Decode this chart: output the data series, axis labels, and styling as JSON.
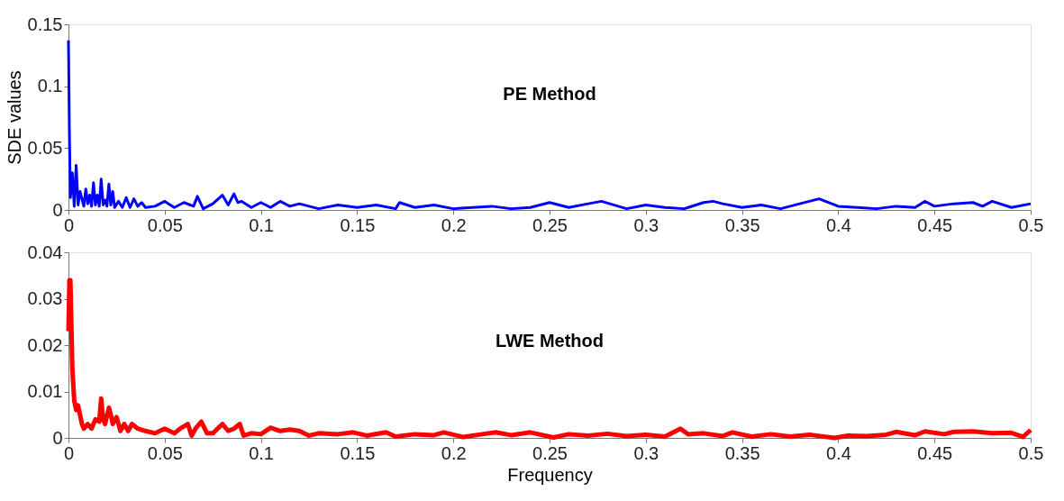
{
  "chart_data": [
    {
      "type": "line",
      "ylabel": "SDE values",
      "annotations": [
        "PE Method"
      ],
      "x": [
        0,
        0.0005,
        0.001,
        0.002,
        0.003,
        0.004,
        0.005,
        0.006,
        0.008,
        0.009,
        0.01,
        0.011,
        0.012,
        0.013,
        0.014,
        0.015,
        0.016,
        0.017,
        0.018,
        0.019,
        0.02,
        0.021,
        0.022,
        0.023,
        0.024,
        0.026,
        0.028,
        0.03,
        0.032,
        0.034,
        0.036,
        0.038,
        0.04,
        0.045,
        0.05,
        0.055,
        0.06,
        0.065,
        0.067,
        0.07,
        0.075,
        0.08,
        0.083,
        0.086,
        0.088,
        0.09,
        0.095,
        0.1,
        0.105,
        0.11,
        0.115,
        0.12,
        0.13,
        0.14,
        0.15,
        0.16,
        0.17,
        0.172,
        0.18,
        0.19,
        0.2,
        0.21,
        0.22,
        0.23,
        0.24,
        0.25,
        0.26,
        0.27,
        0.277,
        0.29,
        0.3,
        0.31,
        0.32,
        0.33,
        0.335,
        0.34,
        0.35,
        0.36,
        0.37,
        0.38,
        0.39,
        0.4,
        0.41,
        0.42,
        0.43,
        0.44,
        0.445,
        0.45,
        0.46,
        0.47,
        0.475,
        0.48,
        0.49,
        0.5
      ],
      "series": [
        {
          "color": "#0000ff",
          "values": [
            0.137,
            0.06,
            0.01,
            0.03,
            0.003,
            0.036,
            0.004,
            0.015,
            0.003,
            0.017,
            0.005,
            0.012,
            0.003,
            0.022,
            0.004,
            0.012,
            0.003,
            0.025,
            0.004,
            0.008,
            0.003,
            0.021,
            0.004,
            0.015,
            0.002,
            0.007,
            0.002,
            0.01,
            0.002,
            0.009,
            0.003,
            0.006,
            0.002,
            0.003,
            0.007,
            0.002,
            0.006,
            0.003,
            0.011,
            0.001,
            0.005,
            0.012,
            0.004,
            0.013,
            0.006,
            0.007,
            0.002,
            0.006,
            0.002,
            0.007,
            0.003,
            0.005,
            0.001,
            0.004,
            0.002,
            0.004,
            0.001,
            0.006,
            0.002,
            0.004,
            0.001,
            0.002,
            0.003,
            0.001,
            0.002,
            0.006,
            0.002,
            0.005,
            0.007,
            0.001,
            0.004,
            0.002,
            0.001,
            0.006,
            0.007,
            0.005,
            0.002,
            0.004,
            0.001,
            0.005,
            0.009,
            0.003,
            0.002,
            0.001,
            0.003,
            0.002,
            0.007,
            0.003,
            0.005,
            0.006,
            0.003,
            0.007,
            0.002,
            0.005
          ]
        }
      ],
      "xlim": [
        0,
        0.5
      ],
      "xticks": [
        0,
        0.05,
        0.1,
        0.15,
        0.2,
        0.25,
        0.3,
        0.35,
        0.4,
        0.45,
        0.5
      ],
      "ylim": [
        0,
        0.15
      ],
      "yticks": [
        0,
        0.05,
        0.1,
        0.15
      ]
    },
    {
      "type": "line",
      "xlabel": "Frequency",
      "annotations": [
        "LWE Method"
      ],
      "x": [
        0,
        0.0005,
        0.001,
        0.002,
        0.003,
        0.004,
        0.005,
        0.007,
        0.008,
        0.01,
        0.012,
        0.014,
        0.016,
        0.017,
        0.018,
        0.019,
        0.021,
        0.022,
        0.023,
        0.025,
        0.027,
        0.029,
        0.031,
        0.033,
        0.036,
        0.04,
        0.045,
        0.05,
        0.055,
        0.058,
        0.062,
        0.064,
        0.066,
        0.069,
        0.072,
        0.075,
        0.08,
        0.083,
        0.086,
        0.089,
        0.091,
        0.095,
        0.1,
        0.105,
        0.11,
        0.115,
        0.12,
        0.125,
        0.13,
        0.14,
        0.148,
        0.155,
        0.165,
        0.17,
        0.18,
        0.19,
        0.195,
        0.205,
        0.215,
        0.222,
        0.23,
        0.24,
        0.252,
        0.26,
        0.27,
        0.28,
        0.29,
        0.3,
        0.31,
        0.318,
        0.322,
        0.33,
        0.34,
        0.345,
        0.355,
        0.365,
        0.375,
        0.385,
        0.398,
        0.405,
        0.415,
        0.425,
        0.43,
        0.44,
        0.445,
        0.455,
        0.46,
        0.47,
        0.48,
        0.49,
        0.496,
        0.5
      ],
      "series": [
        {
          "color": "#ff0000",
          "values": [
            0.023,
            0.034,
            0.034,
            0.015,
            0.008,
            0.006,
            0.007,
            0.003,
            0.002,
            0.003,
            0.002,
            0.004,
            0.0035,
            0.0085,
            0.004,
            0.003,
            0.0065,
            0.005,
            0.003,
            0.0045,
            0.0015,
            0.003,
            0.0015,
            0.003,
            0.002,
            0.0015,
            0.001,
            0.002,
            0.001,
            0.002,
            0.003,
            0.0005,
            0.002,
            0.0035,
            0.001,
            0.001,
            0.003,
            0.0015,
            0.002,
            0.003,
            0.0005,
            0.001,
            0.0008,
            0.0022,
            0.0015,
            0.0018,
            0.0015,
            0.0005,
            0.001,
            0.0008,
            0.0012,
            0.0005,
            0.0012,
            0.0003,
            0.0008,
            0.0006,
            0.0012,
            0.0002,
            0.0008,
            0.0012,
            0.0006,
            0.0012,
            0.0001,
            0.0008,
            0.0005,
            0.0009,
            0.0004,
            0.0007,
            0.0003,
            0.002,
            0.0008,
            0.001,
            0.0004,
            0.0012,
            0.0003,
            0.0008,
            0.0003,
            0.0007,
            0,
            0.0005,
            0.0004,
            0.0007,
            0.0013,
            0.0006,
            0.0014,
            0.0008,
            0.0013,
            0.0014,
            0.001,
            0.0011,
            0.0002,
            0.0017
          ]
        }
      ],
      "xlim": [
        0,
        0.5
      ],
      "xticks": [
        0,
        0.05,
        0.1,
        0.15,
        0.2,
        0.25,
        0.3,
        0.35,
        0.4,
        0.45,
        0.5
      ],
      "ylim": [
        0,
        0.04
      ],
      "yticks": [
        0,
        0.01,
        0.02,
        0.03,
        0.04
      ]
    }
  ]
}
